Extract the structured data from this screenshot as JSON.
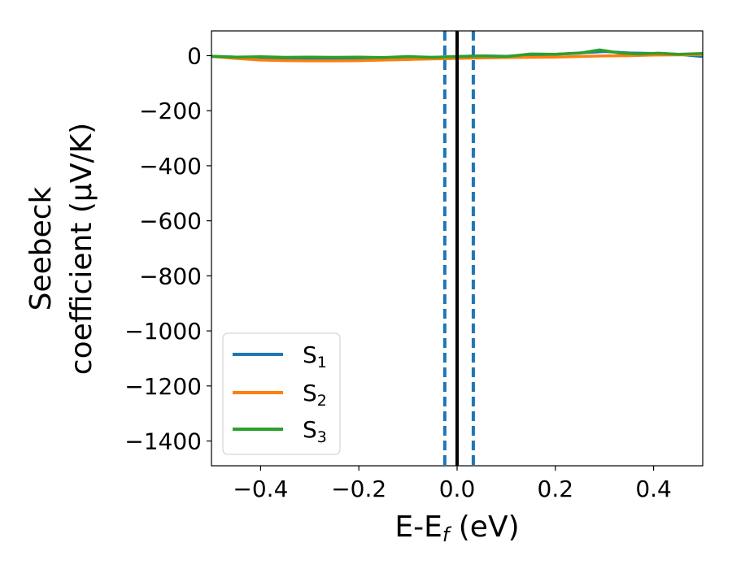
{
  "chart_data": {
    "type": "line",
    "xlabel": "E-E",
    "xlabel_sub": "f",
    "xlabel_unit": " (eV)",
    "ylabel_line1": "Seebeck",
    "ylabel_line2": "coefficient  (μV/K)",
    "xlim": [
      -0.5,
      0.5
    ],
    "ylim": [
      -1490,
      90
    ],
    "xticks": [
      -0.4,
      -0.2,
      0.0,
      0.2,
      0.4
    ],
    "xtick_labels": [
      "−0.4",
      "−0.2",
      "0.0",
      "0.2",
      "0.4"
    ],
    "yticks": [
      0,
      -200,
      -400,
      -600,
      -800,
      -1000,
      -1200,
      -1400
    ],
    "ytick_labels": [
      "0",
      "−200",
      "−400",
      "−600",
      "−800",
      "−1000",
      "−1200",
      "−1400"
    ],
    "grid": false,
    "legend_position": "lower-left",
    "series": [
      {
        "name": "S",
        "name_sub": "1",
        "color": "#1f77b4",
        "x": [
          -0.5,
          -0.45,
          -0.4,
          -0.35,
          -0.3,
          -0.25,
          -0.2,
          -0.15,
          -0.1,
          -0.05,
          0.0,
          0.05,
          0.1,
          0.15,
          0.2,
          0.25,
          0.3,
          0.35,
          0.4,
          0.45,
          0.48,
          0.5
        ],
        "y": [
          -2,
          -5,
          -8,
          -9,
          -10,
          -10,
          -9,
          -8,
          -7,
          -6,
          -3,
          -1,
          -2,
          2,
          5,
          10,
          15,
          10,
          8,
          5,
          0,
          -3
        ]
      },
      {
        "name": "S",
        "name_sub": "2",
        "color": "#ff7f0e",
        "x": [
          -0.5,
          -0.45,
          -0.4,
          -0.35,
          -0.3,
          -0.25,
          -0.2,
          -0.15,
          -0.1,
          -0.05,
          0.0,
          0.05,
          0.1,
          0.15,
          0.2,
          0.25,
          0.3,
          0.35,
          0.4,
          0.45,
          0.5
        ],
        "y": [
          -3,
          -10,
          -16,
          -18,
          -19,
          -19,
          -18,
          -16,
          -14,
          -12,
          -10,
          -8,
          -7,
          -6,
          -5,
          -3,
          -1,
          0,
          2,
          3,
          4
        ]
      },
      {
        "name": "S",
        "name_sub": "3",
        "color": "#2ca02c",
        "x": [
          -0.5,
          -0.45,
          -0.4,
          -0.35,
          -0.3,
          -0.25,
          -0.2,
          -0.15,
          -0.1,
          -0.05,
          0.0,
          0.05,
          0.1,
          0.15,
          0.2,
          0.25,
          0.29,
          0.33,
          0.37,
          0.41,
          0.45,
          0.5
        ],
        "y": [
          -2,
          -5,
          -4,
          -6,
          -5,
          -6,
          -5,
          -7,
          -3,
          -6,
          -3,
          -1,
          -3,
          6,
          5,
          9,
          21,
          10,
          6,
          9,
          5,
          8
        ]
      }
    ],
    "vlines": [
      {
        "x": 0.0,
        "color": "#000000",
        "style": "solid"
      },
      {
        "x": -0.025,
        "color": "#1f77b4",
        "style": "dashed"
      },
      {
        "x": 0.033,
        "color": "#1f77b4",
        "style": "dashed"
      }
    ]
  }
}
